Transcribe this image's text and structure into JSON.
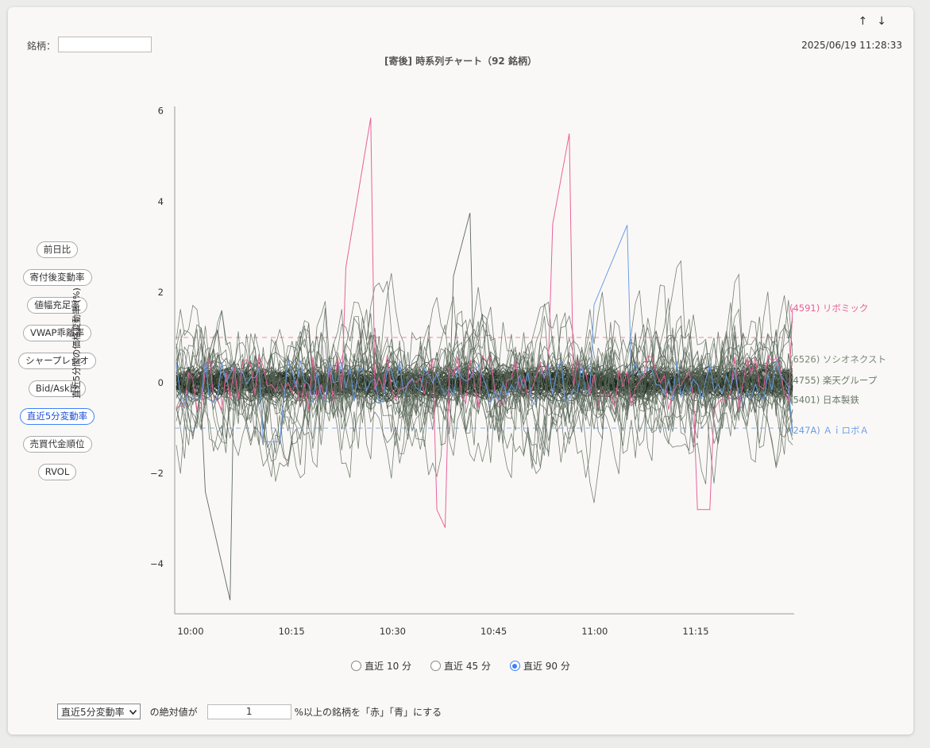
{
  "header": {
    "stock_label": "銘柄：",
    "stock_value": "",
    "sort_asc_icon": "↑",
    "sort_desc_icon": "↓",
    "timestamp": "2025/06/19 11:28:33",
    "title": "[寄後] 時系列チャート（92 銘柄）"
  },
  "sidebar": {
    "items": [
      {
        "label": "前日比",
        "active": false
      },
      {
        "label": "寄付後変動率",
        "active": false
      },
      {
        "label": "値幅充足率",
        "active": false
      },
      {
        "label": "VWAP乖離率",
        "active": false
      },
      {
        "label": "シャープレシオ",
        "active": false
      },
      {
        "label": "Bid/Ask比",
        "active": false
      },
      {
        "label": "直近5分変動率",
        "active": true
      },
      {
        "label": "売買代金順位",
        "active": false
      },
      {
        "label": "RVOL",
        "active": false
      }
    ]
  },
  "chart_data": {
    "type": "line",
    "ylabel": "直近5分間の価格変動率 (%)",
    "ylim": [
      -5.1,
      6.1
    ],
    "yticks": [
      6,
      4,
      2,
      0,
      -2,
      -4
    ],
    "xticks": [
      "10:00",
      "10:15",
      "10:30",
      "10:45",
      "11:00",
      "11:15"
    ],
    "threshold_lines": [
      1,
      -1
    ],
    "grid": false,
    "colors": {
      "up": "#e8609a",
      "down": "#6b9ee8",
      "neutral": "#4b5a4b",
      "threshold_red": "#e88aa8",
      "threshold_blue": "#8aaee8"
    },
    "highlighted_series": [
      {
        "name": "(4591) リボミック",
        "color": "#e8609a",
        "last": 1.65
      },
      {
        "name": "(6526) ソシオネクスト",
        "color": "#7a8a7a",
        "last": 0.5
      },
      {
        "name": "(4755) 楽天グループ",
        "color": "#6a7a6a",
        "last": 0.05
      },
      {
        "name": "(5401) 日本製鉄",
        "color": "#6a7a6a",
        "last": -0.35
      },
      {
        "name": "(247A) ＡｉロボＡ",
        "color": "#6b9ee8",
        "last": -1.05
      }
    ]
  },
  "radios": {
    "options": [
      {
        "label": "直近 10 分",
        "selected": false
      },
      {
        "label": "直近 45 分",
        "selected": false
      },
      {
        "label": "直近 90 分",
        "selected": true
      }
    ]
  },
  "footer": {
    "metric_select": "直近5分変動率",
    "text1": "の絶対値が",
    "threshold_value": "1",
    "text2": "%以上の銘柄を「赤」「青」にする"
  }
}
